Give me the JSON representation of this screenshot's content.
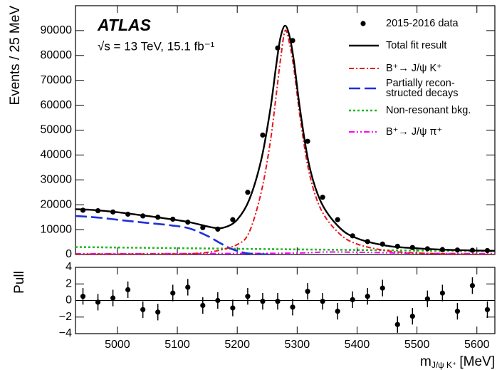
{
  "chart_data": [
    {
      "type": "scatter",
      "y_label": "Events / 25 MeV",
      "annotations": {
        "experiment": "ATLAS",
        "conditions": "√s = 13 TeV, 15.1 fb⁻¹"
      },
      "xlim": [
        4930,
        5630
      ],
      "ylim": [
        0,
        100000
      ],
      "yticks": [
        0,
        10000,
        20000,
        30000,
        40000,
        50000,
        60000,
        70000,
        80000,
        90000
      ],
      "x": [
        4942.5,
        4967.5,
        4992.5,
        5017.5,
        5042.5,
        5067.5,
        5092.5,
        5117.5,
        5142.5,
        5167.5,
        5192.5,
        5217.5,
        5242.5,
        5267.5,
        5292.5,
        5317.5,
        5342.5,
        5367.5,
        5392.5,
        5417.5,
        5442.5,
        5467.5,
        5492.5,
        5517.5,
        5542.5,
        5567.5,
        5592.5,
        5617.5
      ],
      "series": [
        {
          "name": "2015-2016 data",
          "color": "#000000",
          "style": "dot",
          "values": [
            17800,
            17600,
            17100,
            16200,
            15500,
            15000,
            14200,
            13000,
            10800,
            10200,
            14000,
            25000,
            48000,
            83000,
            86000,
            45500,
            23000,
            14000,
            7500,
            5200,
            4200,
            3300,
            2800,
            2300,
            2000,
            1800,
            1700,
            1600
          ]
        },
        {
          "name": "Total fit result",
          "color": "#000000",
          "style": "solid",
          "x": [
            4930,
            4960,
            5000,
            5040,
            5080,
            5120,
            5160,
            5180,
            5200,
            5220,
            5240,
            5255,
            5265,
            5272,
            5280,
            5288,
            5295,
            5305,
            5320,
            5340,
            5370,
            5400,
            5450,
            5500,
            5550,
            5600,
            5630
          ],
          "values": [
            18200,
            17900,
            17000,
            15800,
            14500,
            13000,
            10800,
            11000,
            14000,
            22000,
            38000,
            58000,
            76000,
            87000,
            92000,
            87000,
            77000,
            58000,
            36000,
            21000,
            11000,
            6500,
            3500,
            2500,
            1900,
            1600,
            1500
          ]
        },
        {
          "name": "B⁺→ J/ψ K⁺",
          "color": "#e8151b",
          "style": "dashdot",
          "x": [
            4930,
            5000,
            5080,
            5120,
            5160,
            5200,
            5220,
            5240,
            5255,
            5265,
            5272,
            5280,
            5288,
            5295,
            5305,
            5320,
            5340,
            5370,
            5400,
            5450,
            5500,
            5550,
            5600,
            5630
          ],
          "values": [
            100,
            150,
            200,
            300,
            1200,
            4000,
            9000,
            25000,
            45000,
            64000,
            78000,
            90000,
            84000,
            74000,
            55000,
            33000,
            18000,
            8500,
            4200,
            1500,
            600,
            250,
            100,
            50
          ]
        },
        {
          "name": "Partially recon-\nstructed decays",
          "color": "#1f2fe0",
          "style": "longdash",
          "x": [
            4930,
            4970,
            5010,
            5050,
            5090,
            5120,
            5150,
            5170,
            5190,
            5210,
            5230,
            5260
          ],
          "values": [
            15500,
            14800,
            13700,
            12700,
            11700,
            10500,
            7500,
            4800,
            2300,
            800,
            200,
            0
          ]
        },
        {
          "name": "Non-resonant bkg.",
          "color": "#22bb22",
          "style": "dotted",
          "x": [
            4930,
            5280,
            5630
          ],
          "values": [
            3000,
            2100,
            1300
          ]
        },
        {
          "name": "B⁺→ J/ψ π⁺",
          "color": "#ff00ff",
          "style": "dashdotdot",
          "x": [
            4930,
            5200,
            5300,
            5350,
            5400,
            5500,
            5630
          ],
          "values": [
            300,
            400,
            600,
            1000,
            900,
            500,
            300
          ]
        }
      ]
    },
    {
      "type": "scatter",
      "y_label": "Pull",
      "x_label": {
        "main": "m",
        "sub": "J/ψ K⁺",
        "unit": "[MeV]"
      },
      "xlim": [
        4930,
        5630
      ],
      "xticks": [
        5000,
        5100,
        5200,
        5300,
        5400,
        5500,
        5600
      ],
      "ylim": [
        -4,
        4
      ],
      "yticks": [
        {
          "value": -4,
          "label": "−4"
        },
        {
          "value": -2,
          "label": "−2"
        },
        0,
        2,
        4
      ],
      "values": [
        0.5,
        -0.2,
        0.3,
        1.3,
        -1.1,
        -1.4,
        0.9,
        1.6,
        -0.6,
        0.0,
        -0.9,
        0.5,
        -0.1,
        -0.1,
        -0.8,
        1.1,
        -0.1,
        -1.3,
        0.1,
        0.5,
        1.5,
        -2.9,
        -1.9,
        0.2,
        0.9,
        -1.3,
        1.8,
        -1.1
      ],
      "errors": [
        1,
        1,
        1,
        1,
        1,
        1,
        1,
        1,
        1,
        1,
        1,
        1,
        1,
        1,
        1,
        1,
        1,
        1,
        1,
        1,
        1,
        1,
        1,
        1,
        1,
        1,
        1,
        1
      ]
    }
  ]
}
